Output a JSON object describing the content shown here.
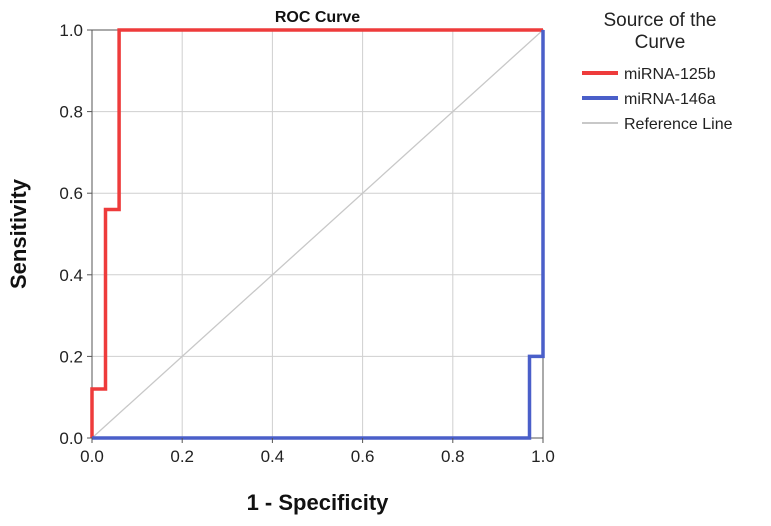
{
  "chart_data": {
    "type": "line",
    "title": "ROC Curve",
    "xlabel": "1 - Specificity",
    "ylabel": "Sensitivity",
    "xlim": [
      0,
      1
    ],
    "ylim": [
      0,
      1
    ],
    "xticks": [
      "0.0",
      "0.2",
      "0.4",
      "0.6",
      "0.8",
      "1.0"
    ],
    "yticks": [
      "0.0",
      "0.2",
      "0.4",
      "0.6",
      "0.8",
      "1.0"
    ],
    "grid": true,
    "legend": {
      "title": "Source of the Curve",
      "position": "right"
    },
    "series": [
      {
        "name": "miRNA-125b",
        "color": "#ee3b3b",
        "points": [
          [
            0,
            0
          ],
          [
            0,
            0.12
          ],
          [
            0.03,
            0.12
          ],
          [
            0.03,
            0.56
          ],
          [
            0.06,
            0.56
          ],
          [
            0.06,
            1.0
          ],
          [
            1.0,
            1.0
          ]
        ]
      },
      {
        "name": "miRNA-146a",
        "color": "#4a5fc9",
        "points": [
          [
            0,
            0
          ],
          [
            0.97,
            0
          ],
          [
            0.97,
            0.2
          ],
          [
            1.0,
            0.2
          ],
          [
            1.0,
            1.0
          ]
        ]
      },
      {
        "name": "Reference Line",
        "color": "#c8c8c8",
        "points": [
          [
            0,
            0
          ],
          [
            1,
            1
          ]
        ]
      }
    ]
  }
}
